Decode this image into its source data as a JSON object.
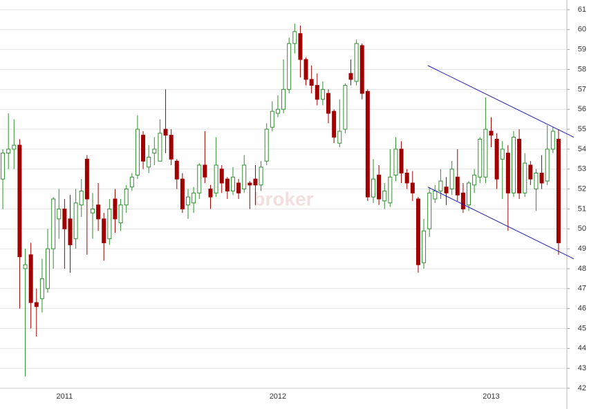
{
  "chart_data": {
    "type": "candlestick",
    "watermark": "broker",
    "categories": [
      null,
      null,
      null,
      null,
      null,
      null,
      null,
      null,
      null,
      null,
      null,
      "2011",
      null,
      null,
      null,
      null,
      null,
      null,
      null,
      null,
      null,
      null,
      null,
      null,
      null,
      null,
      null,
      null,
      null,
      null,
      null,
      null,
      null,
      null,
      null,
      null,
      null,
      null,
      null,
      null,
      null,
      null,
      null,
      null,
      null,
      null,
      null,
      null,
      null,
      "2012",
      null,
      null,
      null,
      null,
      null,
      null,
      null,
      null,
      null,
      null,
      null,
      null,
      null,
      null,
      null,
      null,
      null,
      null,
      null,
      null,
      null,
      null,
      null,
      null,
      null,
      null,
      null,
      null,
      null,
      null,
      null,
      null,
      null,
      null,
      null,
      null,
      null,
      "2013",
      null,
      null,
      null,
      null,
      null,
      null,
      null,
      null,
      null,
      null,
      null,
      null
    ],
    "candles": [
      {
        "o": 52.5,
        "h": 54,
        "l": 51,
        "c": 53.8
      },
      {
        "o": 53.8,
        "h": 55.8,
        "l": 53,
        "c": 54
      },
      {
        "o": 54,
        "h": 55.5,
        "l": 53,
        "c": 54.2
      },
      {
        "o": 54.2,
        "h": 54.5,
        "l": 46,
        "c": 48.6
      },
      {
        "o": 48,
        "h": 49,
        "l": 42.6,
        "c": 48.2
      },
      {
        "o": 48.7,
        "h": 49.3,
        "l": 45,
        "c": 46.3
      },
      {
        "o": 46.3,
        "h": 47,
        "l": 44.6,
        "c": 46.1
      },
      {
        "o": 46.5,
        "h": 48.5,
        "l": 45.8,
        "c": 47.5
      },
      {
        "o": 47,
        "h": 50,
        "l": 46.8,
        "c": 49
      },
      {
        "o": 49,
        "h": 51.6,
        "l": 48,
        "c": 51.5
      },
      {
        "o": 50.5,
        "h": 52,
        "l": 49.5,
        "c": 51
      },
      {
        "o": 51,
        "h": 51.5,
        "l": 48,
        "c": 50
      },
      {
        "o": 50.5,
        "h": 51.7,
        "l": 47.8,
        "c": 49.2
      },
      {
        "o": 49.5,
        "h": 52,
        "l": 49,
        "c": 51.3
      },
      {
        "o": 51.2,
        "h": 52.5,
        "l": 50.6,
        "c": 51.9
      },
      {
        "o": 53.5,
        "h": 53.7,
        "l": 48.7,
        "c": 51.5
      },
      {
        "o": 50.8,
        "h": 51.8,
        "l": 49.5,
        "c": 51
      },
      {
        "o": 51.2,
        "h": 52.3,
        "l": 49.9,
        "c": 50.5
      },
      {
        "o": 50.5,
        "h": 50.8,
        "l": 48.4,
        "c": 49.3
      },
      {
        "o": 49.5,
        "h": 51.5,
        "l": 49.2,
        "c": 51
      },
      {
        "o": 51.5,
        "h": 52,
        "l": 49.8,
        "c": 50.5
      },
      {
        "o": 50.3,
        "h": 51.5,
        "l": 49.9,
        "c": 51.2
      },
      {
        "o": 51.2,
        "h": 52.2,
        "l": 50.8,
        "c": 52
      },
      {
        "o": 52.1,
        "h": 52.8,
        "l": 51.9,
        "c": 52.6
      },
      {
        "o": 52.7,
        "h": 55.7,
        "l": 52.5,
        "c": 55
      },
      {
        "o": 54.7,
        "h": 54.9,
        "l": 53,
        "c": 53.4
      },
      {
        "o": 53.1,
        "h": 54.2,
        "l": 52.8,
        "c": 53.6
      },
      {
        "o": 53.8,
        "h": 54.6,
        "l": 53.2,
        "c": 54
      },
      {
        "o": 53.4,
        "h": 55.5,
        "l": 53.4,
        "c": 54.8
      },
      {
        "o": 55,
        "h": 57,
        "l": 53.8,
        "c": 54.7
      },
      {
        "o": 54.7,
        "h": 55,
        "l": 53.2,
        "c": 53.5
      },
      {
        "o": 53.4,
        "h": 53.5,
        "l": 52,
        "c": 52.5
      },
      {
        "o": 52.5,
        "h": 52.8,
        "l": 50.8,
        "c": 51
      },
      {
        "o": 51.2,
        "h": 52,
        "l": 50.5,
        "c": 51.6
      },
      {
        "o": 51.3,
        "h": 52.1,
        "l": 50.8,
        "c": 51.8
      },
      {
        "o": 51.8,
        "h": 53.3,
        "l": 51.5,
        "c": 53.2
      },
      {
        "o": 53.2,
        "h": 54.9,
        "l": 52.3,
        "c": 52.6
      },
      {
        "o": 52,
        "h": 52.2,
        "l": 51,
        "c": 51.6
      },
      {
        "o": 51.8,
        "h": 54.6,
        "l": 51.6,
        "c": 53.2
      },
      {
        "o": 53,
        "h": 53.2,
        "l": 51.8,
        "c": 52.3
      },
      {
        "o": 52.5,
        "h": 52.6,
        "l": 51.5,
        "c": 51.9
      },
      {
        "o": 51.9,
        "h": 53.1,
        "l": 51.7,
        "c": 52.6
      },
      {
        "o": 52.3,
        "h": 52.5,
        "l": 51.5,
        "c": 51.8
      },
      {
        "o": 52,
        "h": 53.7,
        "l": 51.8,
        "c": 53.2
      },
      {
        "o": 52.3,
        "h": 52.4,
        "l": 51,
        "c": 52.2
      },
      {
        "o": 52.5,
        "h": 53.2,
        "l": 51.2,
        "c": 52.2
      },
      {
        "o": 52.2,
        "h": 53.4,
        "l": 51.9,
        "c": 53.1
      },
      {
        "o": 53.4,
        "h": 55.3,
        "l": 53.2,
        "c": 55
      },
      {
        "o": 55.1,
        "h": 56.4,
        "l": 54.9,
        "c": 55.9
      },
      {
        "o": 55.8,
        "h": 56.7,
        "l": 55.6,
        "c": 56
      },
      {
        "o": 56,
        "h": 58.5,
        "l": 55.8,
        "c": 57
      },
      {
        "o": 57,
        "h": 59.6,
        "l": 56.8,
        "c": 59.3
      },
      {
        "o": 59.3,
        "h": 60.3,
        "l": 58.8,
        "c": 59.9
      },
      {
        "o": 59.8,
        "h": 60.2,
        "l": 57.6,
        "c": 58.5
      },
      {
        "o": 58.5,
        "h": 58.6,
        "l": 57.2,
        "c": 57.5
      },
      {
        "o": 57.5,
        "h": 58.2,
        "l": 56.8,
        "c": 57.2
      },
      {
        "o": 57.2,
        "h": 57.8,
        "l": 56.2,
        "c": 56.5
      },
      {
        "o": 56.5,
        "h": 57.4,
        "l": 56.2,
        "c": 57
      },
      {
        "o": 56.8,
        "h": 57,
        "l": 55.3,
        "c": 55.8
      },
      {
        "o": 55.9,
        "h": 56,
        "l": 54.3,
        "c": 54.6
      },
      {
        "o": 54.3,
        "h": 56.5,
        "l": 54.1,
        "c": 54.9
      },
      {
        "o": 55,
        "h": 57.3,
        "l": 54.8,
        "c": 57.2
      },
      {
        "o": 57.8,
        "h": 58.5,
        "l": 57.2,
        "c": 57.5
      },
      {
        "o": 57.4,
        "h": 59.5,
        "l": 57.2,
        "c": 59.3
      },
      {
        "o": 59.2,
        "h": 59.3,
        "l": 56.5,
        "c": 56.8
      },
      {
        "o": 56.9,
        "h": 57,
        "l": 51.4,
        "c": 51.6
      },
      {
        "o": 51.6,
        "h": 53.5,
        "l": 51.3,
        "c": 52.5
      },
      {
        "o": 52.7,
        "h": 53.2,
        "l": 51.2,
        "c": 51.5
      },
      {
        "o": 51.4,
        "h": 52.3,
        "l": 51,
        "c": 51.9
      },
      {
        "o": 51.3,
        "h": 54,
        "l": 51.1,
        "c": 52.6
      },
      {
        "o": 52.7,
        "h": 54.6,
        "l": 52.4,
        "c": 54
      },
      {
        "o": 54,
        "h": 54.4,
        "l": 52.3,
        "c": 52.8
      },
      {
        "o": 52.8,
        "h": 53,
        "l": 52,
        "c": 52.3
      },
      {
        "o": 52.3,
        "h": 52.9,
        "l": 51.4,
        "c": 51.8
      },
      {
        "o": 51.5,
        "h": 51.6,
        "l": 47.8,
        "c": 48.2
      },
      {
        "o": 48.3,
        "h": 50.5,
        "l": 48,
        "c": 49.9
      },
      {
        "o": 50,
        "h": 52.1,
        "l": 49.6,
        "c": 51.8
      },
      {
        "o": 51.5,
        "h": 52.2,
        "l": 51.3,
        "c": 51.9
      },
      {
        "o": 51.9,
        "h": 53,
        "l": 51.5,
        "c": 52.4
      },
      {
        "o": 52.1,
        "h": 52.6,
        "l": 51.2,
        "c": 51.8
      },
      {
        "o": 52,
        "h": 53.4,
        "l": 51.7,
        "c": 53
      },
      {
        "o": 52.6,
        "h": 54,
        "l": 51.4,
        "c": 51.7
      },
      {
        "o": 51.8,
        "h": 52.3,
        "l": 50.8,
        "c": 51
      },
      {
        "o": 51.2,
        "h": 52.4,
        "l": 50.9,
        "c": 52.3
      },
      {
        "o": 52.2,
        "h": 53,
        "l": 51.8,
        "c": 52.7
      },
      {
        "o": 52.6,
        "h": 54.6,
        "l": 52.3,
        "c": 54.5
      },
      {
        "o": 52.6,
        "h": 56.6,
        "l": 52.3,
        "c": 55
      },
      {
        "o": 54.9,
        "h": 55.6,
        "l": 54.1,
        "c": 54.7
      },
      {
        "o": 54.5,
        "h": 54.8,
        "l": 52,
        "c": 52.5
      },
      {
        "o": 53.5,
        "h": 54.4,
        "l": 51.5,
        "c": 54
      },
      {
        "o": 53.8,
        "h": 54.2,
        "l": 49.9,
        "c": 51.8
      },
      {
        "o": 51.8,
        "h": 54.9,
        "l": 51.6,
        "c": 54.6
      },
      {
        "o": 54.5,
        "h": 55,
        "l": 51.5,
        "c": 51.8
      },
      {
        "o": 51.8,
        "h": 53.8,
        "l": 51.6,
        "c": 53.3
      },
      {
        "o": 53.2,
        "h": 53.4,
        "l": 52.2,
        "c": 52.5
      },
      {
        "o": 52,
        "h": 53,
        "l": 50.9,
        "c": 52.8
      },
      {
        "o": 52.8,
        "h": 53.7,
        "l": 52,
        "c": 52.3
      },
      {
        "o": 52.4,
        "h": 55.2,
        "l": 52.2,
        "c": 54
      },
      {
        "o": 54,
        "h": 55.1,
        "l": 53.8,
        "c": 54.9
      },
      {
        "o": 54.5,
        "h": 55,
        "l": 48.7,
        "c": 49.3
      }
    ],
    "up_color": "#2f8f2f",
    "down_color": "#a00000",
    "trendlines": [
      {
        "x": [
          75.7,
          101.7
        ],
        "y": [
          58.2,
          54.6
        ],
        "color": "#1f1fb4"
      },
      {
        "x": [
          75.7,
          101.7
        ],
        "y": [
          52.1,
          48.5
        ],
        "color": "#1f1fb4"
      }
    ],
    "ylim": [
      42,
      61
    ],
    "yticks": [
      42,
      43,
      44,
      45,
      46,
      47,
      48,
      49,
      50,
      51,
      52,
      53,
      54,
      55,
      56,
      57,
      58,
      59,
      60,
      61
    ],
    "grid": true
  }
}
